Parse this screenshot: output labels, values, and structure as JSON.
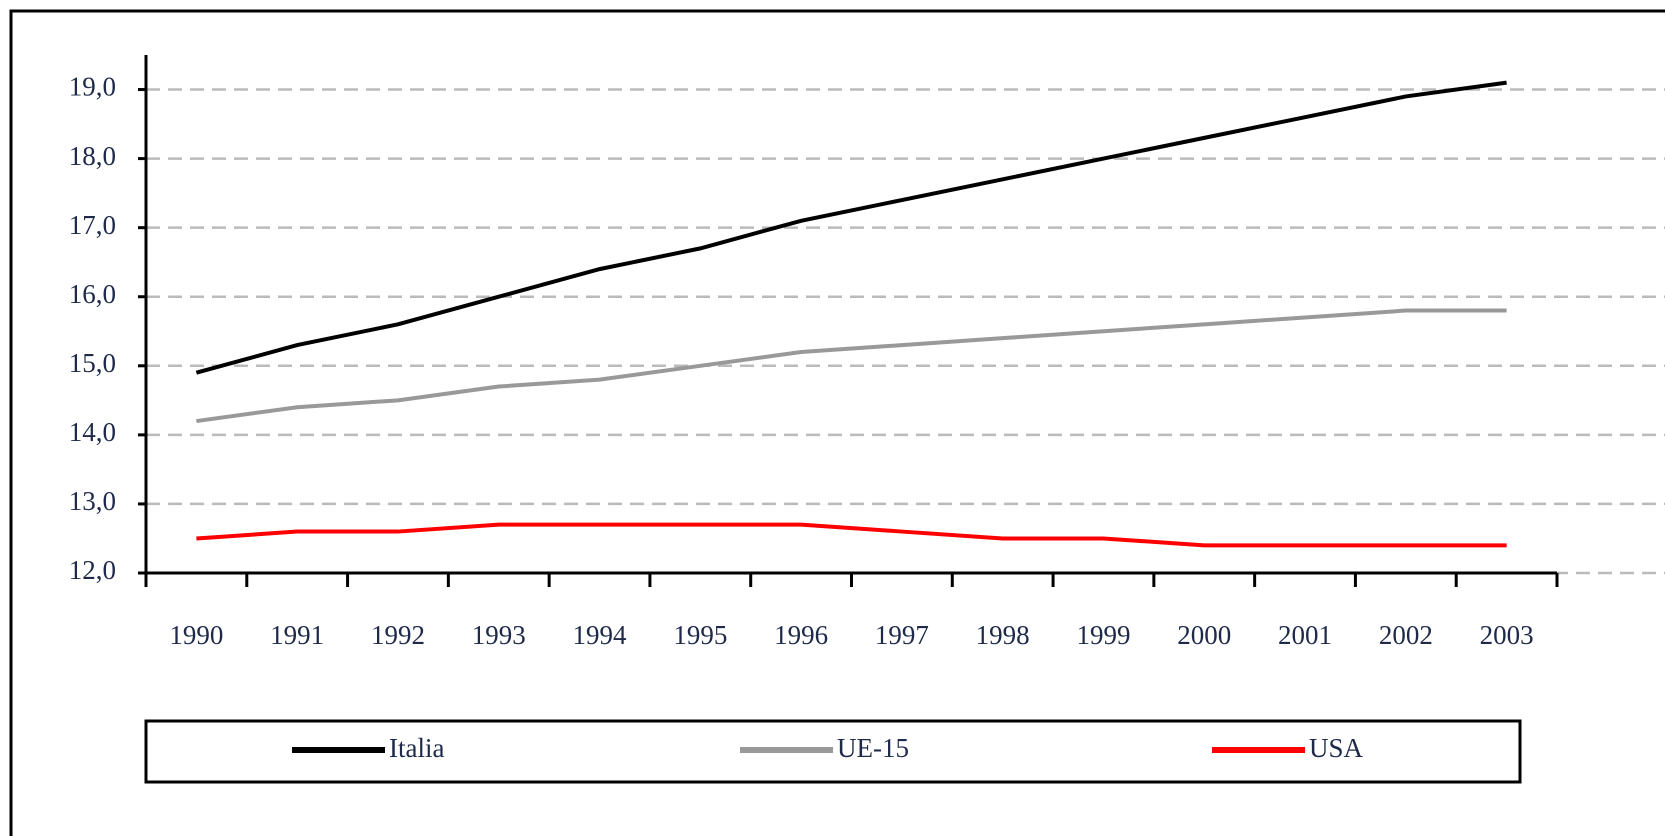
{
  "chart_data": {
    "type": "line",
    "categories": [
      "1990",
      "1991",
      "1992",
      "1993",
      "1994",
      "1995",
      "1996",
      "1997",
      "1998",
      "1999",
      "2000",
      "2001",
      "2002",
      "2003"
    ],
    "series": [
      {
        "name": "Italia",
        "color": "#000000",
        "values": [
          14.9,
          15.3,
          15.6,
          16.0,
          16.4,
          16.7,
          17.1,
          17.4,
          17.7,
          18.0,
          18.3,
          18.6,
          18.9,
          19.1
        ]
      },
      {
        "name": "UE-15",
        "color": "#999999",
        "values": [
          14.2,
          14.4,
          14.5,
          14.7,
          14.8,
          15.0,
          15.2,
          15.3,
          15.4,
          15.5,
          15.6,
          15.7,
          15.8,
          15.8
        ]
      },
      {
        "name": "USA",
        "color": "#ff0000",
        "values": [
          12.5,
          12.6,
          12.6,
          12.7,
          12.7,
          12.7,
          12.7,
          12.6,
          12.5,
          12.5,
          12.4,
          12.4,
          12.4,
          12.4
        ]
      }
    ],
    "ylim": [
      12,
      19.5
    ],
    "yticks": [
      {
        "value": 12,
        "label": "12,0"
      },
      {
        "value": 13,
        "label": "13,0"
      },
      {
        "value": 14,
        "label": "14,0"
      },
      {
        "value": 15,
        "label": "15,0"
      },
      {
        "value": 16,
        "label": "16,0"
      },
      {
        "value": 17,
        "label": "17,0"
      },
      {
        "value": 18,
        "label": "18,0"
      },
      {
        "value": 19,
        "label": "19,0"
      }
    ],
    "grid": true,
    "legend": "bottom"
  }
}
